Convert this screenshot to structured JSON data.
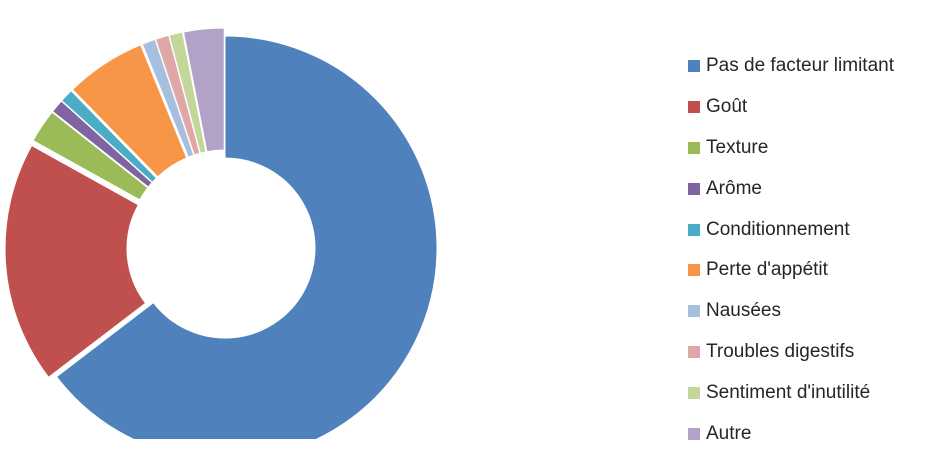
{
  "chart_data": {
    "type": "pie",
    "style": "exploded-donut",
    "categories": [
      "Pas de facteur limitant",
      "Goût",
      "Texture",
      "Arôme",
      "Conditionnement",
      "Perte d'appétit",
      "Nausées",
      "Troubles digestifs",
      "Sentiment d'inutilité",
      "Autre"
    ],
    "values": [
      63,
      18,
      2.5,
      1,
      1,
      6,
      1,
      1,
      1,
      3
    ],
    "colors": [
      "#4F81BD",
      "#C0504D",
      "#9BBB59",
      "#8064A2",
      "#4BACC6",
      "#F79646",
      "#A7BFDE",
      "#DFA7A6",
      "#C4D79B",
      "#B3A2C7"
    ],
    "legend_position": "right"
  }
}
